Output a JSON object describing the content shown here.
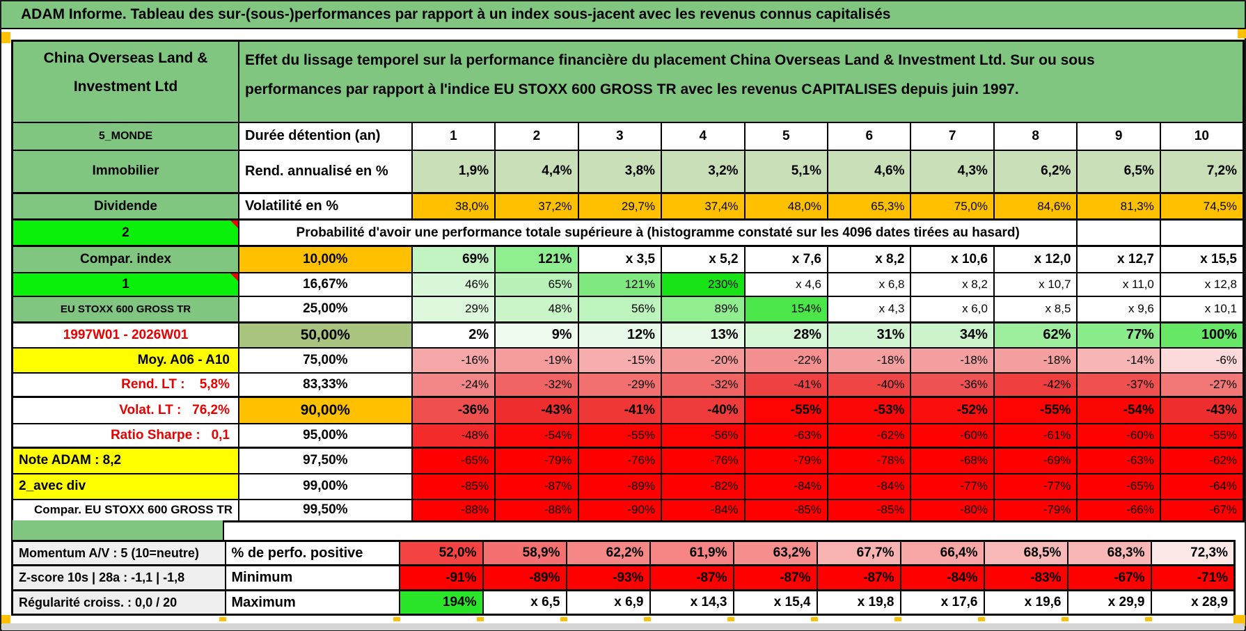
{
  "title": "ADAM Informe. Tableau des sur-(sous-)performances par rapport à un index sous-jacent avec les revenus connus capitalisés",
  "colors": {
    "header_green": "#80c680",
    "lime_green": "#0af00a",
    "orange": "#ffc000",
    "yellow": "#ffff00",
    "sage_green": "#a9c47f",
    "full_red": "#fe0000",
    "label_gray": "#efefef",
    "red_text": "#e80000",
    "comment_marker_red": "#f00000"
  },
  "table": {
    "company": "China Overseas Land &\nInvestment Ltd",
    "description": "Effet du lissage temporel sur la performance financière du placement China Overseas Land & Investment Ltd. Sur ou sous\nperformances par rapport à l'indice EU STOXX 600 GROSS TR avec les revenus CAPITALISES depuis juin 1997.",
    "rows": [
      {
        "a": {
          "text": "5_MONDE",
          "bg": "#80c680"
        },
        "b": {
          "text": "Durée détention (an)",
          "bg": "#ffffff"
        },
        "cells": [
          {
            "v": "1",
            "bg": "#ffffff"
          },
          {
            "v": "2",
            "bg": "#ffffff"
          },
          {
            "v": "3",
            "bg": "#ffffff"
          },
          {
            "v": "4",
            "bg": "#ffffff"
          },
          {
            "v": "5",
            "bg": "#ffffff"
          },
          {
            "v": "6",
            "bg": "#ffffff"
          },
          {
            "v": "7",
            "bg": "#ffffff"
          },
          {
            "v": "8",
            "bg": "#ffffff"
          },
          {
            "v": "9",
            "bg": "#ffffff"
          },
          {
            "v": "10",
            "bg": "#ffffff"
          }
        ]
      },
      {
        "a": {
          "text": "Immobilier",
          "bg": "#80c680"
        },
        "b": {
          "text": "Rend. annualisé en %",
          "bg": "#ffffff"
        },
        "cells": [
          {
            "v": "1,9%",
            "bg": "#c9dfb8"
          },
          {
            "v": "4,4%",
            "bg": "#c9dfb8"
          },
          {
            "v": "3,8%",
            "bg": "#c9dfb8"
          },
          {
            "v": "3,2%",
            "bg": "#c9dfb8"
          },
          {
            "v": "5,1%",
            "bg": "#c9dfb8"
          },
          {
            "v": "4,6%",
            "bg": "#c9dfb8"
          },
          {
            "v": "4,3%",
            "bg": "#c9dfb8"
          },
          {
            "v": "6,2%",
            "bg": "#c9dfb8"
          },
          {
            "v": "6,5%",
            "bg": "#c9dfb8"
          },
          {
            "v": "7,2%",
            "bg": "#c9dfb8"
          }
        ]
      },
      {
        "a": {
          "text": "Dividende",
          "bg": "#80c680"
        },
        "b": {
          "text": "Volatilité en %",
          "bg": "#ffffff"
        },
        "cells": [
          {
            "v": "38,0%",
            "bg": "#ffc000"
          },
          {
            "v": "37,2%",
            "bg": "#ffc000"
          },
          {
            "v": "29,7%",
            "bg": "#ffc000"
          },
          {
            "v": "37,4%",
            "bg": "#ffc000"
          },
          {
            "v": "48,0%",
            "bg": "#ffc000"
          },
          {
            "v": "65,3%",
            "bg": "#ffc000"
          },
          {
            "v": "75,0%",
            "bg": "#ffc000"
          },
          {
            "v": "84,6%",
            "bg": "#ffc000"
          },
          {
            "v": "81,3%",
            "bg": "#ffc000"
          },
          {
            "v": "74,5%",
            "bg": "#ffc000"
          }
        ]
      },
      {
        "a": {
          "text": "2",
          "bg": "#0af00a",
          "comment_marker": true
        },
        "b": {
          "text": "Probabilité d'avoir une performance totale supérieure à (histogramme constaté sur les 4096 dates tirées au hasard)",
          "bg": "#ffffff",
          "colspan": 9
        },
        "cells": [
          {
            "v": "",
            "bg": "#ffffff"
          },
          {
            "v": "",
            "bg": "#ffffff"
          }
        ]
      },
      {
        "a": {
          "text": "Compar. index",
          "bg": "#80c680"
        },
        "b": {
          "text": "10,00%",
          "bg": "#ffc000"
        },
        "cells": [
          {
            "v": "69%",
            "bg": "#c2f4c2"
          },
          {
            "v": "121%",
            "bg": "#8fee8f"
          },
          {
            "v": "x 3,5",
            "bg": "#ffffff"
          },
          {
            "v": "x 5,2",
            "bg": "#ffffff"
          },
          {
            "v": "x 7,6",
            "bg": "#ffffff"
          },
          {
            "v": "x 8,2",
            "bg": "#ffffff"
          },
          {
            "v": "x 10,6",
            "bg": "#ffffff"
          },
          {
            "v": "x 12,0",
            "bg": "#ffffff"
          },
          {
            "v": "x 12,7",
            "bg": "#ffffff"
          },
          {
            "v": "x 15,5",
            "bg": "#ffffff"
          }
        ]
      },
      {
        "a": {
          "text": "1",
          "bg": "#0af00a",
          "comment_marker": true
        },
        "b": {
          "text": "16,67%",
          "bg": "#ffffff"
        },
        "cells": [
          {
            "v": "46%",
            "bg": "#d7f7d7"
          },
          {
            "v": "65%",
            "bg": "#b9f2b9"
          },
          {
            "v": "121%",
            "bg": "#7fe97f"
          },
          {
            "v": "230%",
            "bg": "#17e317"
          },
          {
            "v": "x 4,6",
            "bg": "#ffffff"
          },
          {
            "v": "x 6,8",
            "bg": "#ffffff"
          },
          {
            "v": "x 8,2",
            "bg": "#ffffff"
          },
          {
            "v": "x 10,7",
            "bg": "#ffffff"
          },
          {
            "v": "x 11,0",
            "bg": "#ffffff"
          },
          {
            "v": "x 12,8",
            "bg": "#ffffff"
          }
        ]
      },
      {
        "a": {
          "text": "EU STOXX 600 GROSS TR",
          "bg": "#80c680"
        },
        "b": {
          "text": "25,00%",
          "bg": "#ffffff"
        },
        "cells": [
          {
            "v": "29%",
            "bg": "#def8de"
          },
          {
            "v": "48%",
            "bg": "#c9f5c9"
          },
          {
            "v": "56%",
            "bg": "#bdf3bd"
          },
          {
            "v": "89%",
            "bg": "#90ee90"
          },
          {
            "v": "154%",
            "bg": "#4ae64a"
          },
          {
            "v": "x 4,3",
            "bg": "#ffffff"
          },
          {
            "v": "x 6,0",
            "bg": "#ffffff"
          },
          {
            "v": "x 8,5",
            "bg": "#ffffff"
          },
          {
            "v": "x 9,6",
            "bg": "#ffffff"
          },
          {
            "v": "x 10,1",
            "bg": "#ffffff"
          }
        ]
      },
      {
        "a": {
          "text": "1997W01 - 2026W01",
          "bg": "#ffffff",
          "fg": "#e80000"
        },
        "b": {
          "text": "50,00%",
          "bg": "#a9c47f"
        },
        "cells": [
          {
            "v": "2%",
            "bg": "#ffffff"
          },
          {
            "v": "9%",
            "bg": "#f0fbf0"
          },
          {
            "v": "12%",
            "bg": "#e9f9e9"
          },
          {
            "v": "13%",
            "bg": "#e8f9e8"
          },
          {
            "v": "28%",
            "bg": "#d5f6d5"
          },
          {
            "v": "31%",
            "bg": "#d0f5d0"
          },
          {
            "v": "34%",
            "bg": "#cbf4cb"
          },
          {
            "v": "62%",
            "bg": "#9def9d"
          },
          {
            "v": "77%",
            "bg": "#8bec8b"
          },
          {
            "v": "100%",
            "bg": "#66e866"
          }
        ]
      },
      {
        "a": {
          "text": "Moy. A06 - A10",
          "bg": "#ffff00"
        },
        "b": {
          "text": "75,00%",
          "bg": "#ffffff"
        },
        "cells": [
          {
            "v": "-16%",
            "bg": "#f6a7a7"
          },
          {
            "v": "-19%",
            "bg": "#f59c9c"
          },
          {
            "v": "-15%",
            "bg": "#f7adad"
          },
          {
            "v": "-20%",
            "bg": "#f59898"
          },
          {
            "v": "-22%",
            "bg": "#f49090"
          },
          {
            "v": "-18%",
            "bg": "#f5a0a0"
          },
          {
            "v": "-18%",
            "bg": "#f5a0a0"
          },
          {
            "v": "-18%",
            "bg": "#f5a0a0"
          },
          {
            "v": "-14%",
            "bg": "#f8b5b5"
          },
          {
            "v": "-6%",
            "bg": "#fcdada"
          }
        ]
      },
      {
        "a": {
          "text": "Rend. LT :    5,8%",
          "bg": "#ffffff",
          "fg": "#e80000"
        },
        "b": {
          "text": "83,33%",
          "bg": "#ffffff"
        },
        "cells": [
          {
            "v": "-24%",
            "bg": "#f38686"
          },
          {
            "v": "-32%",
            "bg": "#f16464"
          },
          {
            "v": "-29%",
            "bg": "#f27070"
          },
          {
            "v": "-32%",
            "bg": "#f16464"
          },
          {
            "v": "-41%",
            "bg": "#ef4141"
          },
          {
            "v": "-40%",
            "bg": "#ef4545"
          },
          {
            "v": "-36%",
            "bg": "#f05353"
          },
          {
            "v": "-42%",
            "bg": "#ee3e3e"
          },
          {
            "v": "-37%",
            "bg": "#f05050"
          },
          {
            "v": "-27%",
            "bg": "#f27777"
          }
        ]
      },
      {
        "a": {
          "text": "Volat. LT :   76,2%",
          "bg": "#ffffff",
          "fg": "#e80000"
        },
        "b": {
          "text": "90,00%",
          "bg": "#ffc000"
        },
        "cells": [
          {
            "v": "-36%",
            "bg": "#f04f4f"
          },
          {
            "v": "-43%",
            "bg": "#ee2e2e"
          },
          {
            "v": "-41%",
            "bg": "#ef3737"
          },
          {
            "v": "-40%",
            "bg": "#ef3b3b"
          },
          {
            "v": "-55%",
            "bg": "#fd0303"
          },
          {
            "v": "-53%",
            "bg": "#fb0707"
          },
          {
            "v": "-52%",
            "bg": "#fa0e0e"
          },
          {
            "v": "-55%",
            "bg": "#fd0303"
          },
          {
            "v": "-54%",
            "bg": "#fc0505"
          },
          {
            "v": "-43%",
            "bg": "#ee2e2e"
          }
        ]
      },
      {
        "a": {
          "text": "Ratio Sharpe :   0,1",
          "bg": "#ffffff",
          "fg": "#e80000"
        },
        "b": {
          "text": "95,00%",
          "bg": "#ffffff"
        },
        "cells": [
          {
            "v": "-48%",
            "bg": "#f52a2a"
          },
          {
            "v": "-54%",
            "bg": "#fc0808"
          },
          {
            "v": "-55%",
            "bg": "#fd0404"
          },
          {
            "v": "-56%",
            "bg": "#fd0303"
          },
          {
            "v": "-63%",
            "bg": "#fe0101"
          },
          {
            "v": "-62%",
            "bg": "#fe0101"
          },
          {
            "v": "-60%",
            "bg": "#fe0101"
          },
          {
            "v": "-61%",
            "bg": "#fe0101"
          },
          {
            "v": "-60%",
            "bg": "#fe0101"
          },
          {
            "v": "-55%",
            "bg": "#fd0404"
          }
        ]
      },
      {
        "a": {
          "text": "Note ADAM : 8,2",
          "bg": "#ffff00"
        },
        "b": {
          "text": "97,50%",
          "bg": "#ffffff"
        },
        "cells": [
          {
            "v": "-65%",
            "bg": "#fe0000"
          },
          {
            "v": "-79%",
            "bg": "#fe0000"
          },
          {
            "v": "-76%",
            "bg": "#fe0000"
          },
          {
            "v": "-76%",
            "bg": "#fe0000"
          },
          {
            "v": "-79%",
            "bg": "#fe0000"
          },
          {
            "v": "-78%",
            "bg": "#fe0000"
          },
          {
            "v": "-68%",
            "bg": "#fe0000"
          },
          {
            "v": "-69%",
            "bg": "#fe0000"
          },
          {
            "v": "-63%",
            "bg": "#fe0000"
          },
          {
            "v": "-62%",
            "bg": "#fe0000"
          }
        ]
      },
      {
        "a": {
          "text": "2_avec div",
          "bg": "#ffff00"
        },
        "b": {
          "text": "99,00%",
          "bg": "#ffffff"
        },
        "cells": [
          {
            "v": "-85%",
            "bg": "#fe0000"
          },
          {
            "v": "-87%",
            "bg": "#fe0000"
          },
          {
            "v": "-89%",
            "bg": "#fe0000"
          },
          {
            "v": "-82%",
            "bg": "#fe0000"
          },
          {
            "v": "-84%",
            "bg": "#fe0000"
          },
          {
            "v": "-84%",
            "bg": "#fe0000"
          },
          {
            "v": "-77%",
            "bg": "#fe0000"
          },
          {
            "v": "-77%",
            "bg": "#fe0000"
          },
          {
            "v": "-65%",
            "bg": "#fe0000"
          },
          {
            "v": "-64%",
            "bg": "#fe0000"
          }
        ]
      },
      {
        "a": {
          "text": "Compar. EU STOXX 600 GROSS TR",
          "bg": "#ffffff"
        },
        "b": {
          "text": "99,50%",
          "bg": "#ffffff"
        },
        "cells": [
          {
            "v": "-88%",
            "bg": "#fe0000"
          },
          {
            "v": "-88%",
            "bg": "#fe0000"
          },
          {
            "v": "-90%",
            "bg": "#fe0000"
          },
          {
            "v": "-84%",
            "bg": "#fe0000"
          },
          {
            "v": "-85%",
            "bg": "#fe0000"
          },
          {
            "v": "-85%",
            "bg": "#fe0000"
          },
          {
            "v": "-80%",
            "bg": "#fe0000"
          },
          {
            "v": "-79%",
            "bg": "#fe0000"
          },
          {
            "v": "-66%",
            "bg": "#fe0000"
          },
          {
            "v": "-67%",
            "bg": "#fe0000"
          }
        ]
      }
    ]
  },
  "bottom": {
    "rows": [
      {
        "a": {
          "text": "Momentum A/V : 5 (10=neutre)",
          "bg": "#efefef"
        },
        "b": {
          "text": "% de perfo. positive",
          "bg": "#ffffff"
        },
        "cells": [
          {
            "v": "52,0%",
            "bg": "#f34343"
          },
          {
            "v": "58,9%",
            "bg": "#f57070"
          },
          {
            "v": "62,2%",
            "bg": "#f68787"
          },
          {
            "v": "61,9%",
            "bg": "#f68484"
          },
          {
            "v": "63,2%",
            "bg": "#f78f8f"
          },
          {
            "v": "67,7%",
            "bg": "#f9b2b2"
          },
          {
            "v": "66,4%",
            "bg": "#f8a6a6"
          },
          {
            "v": "68,5%",
            "bg": "#f9b8b8"
          },
          {
            "v": "68,3%",
            "bg": "#f9b6b6"
          },
          {
            "v": "72,3%",
            "bg": "#fde8e8"
          }
        ]
      },
      {
        "a": {
          "text": "Z-score 10s | 28a : -1,1 | -1,8",
          "bg": "#efefef"
        },
        "b": {
          "text": "Minimum",
          "bg": "#ffffff"
        },
        "cells": [
          {
            "v": "-91%",
            "bg": "#fe0000"
          },
          {
            "v": "-89%",
            "bg": "#fe0000"
          },
          {
            "v": "-93%",
            "bg": "#fe0000"
          },
          {
            "v": "-87%",
            "bg": "#fe0000"
          },
          {
            "v": "-87%",
            "bg": "#fe0000"
          },
          {
            "v": "-87%",
            "bg": "#fe0000"
          },
          {
            "v": "-84%",
            "bg": "#fe0000"
          },
          {
            "v": "-83%",
            "bg": "#fe0000"
          },
          {
            "v": "-67%",
            "bg": "#fe0000"
          },
          {
            "v": "-71%",
            "bg": "#fe0000"
          }
        ]
      },
      {
        "a": {
          "text": "Régularité croiss. : 0,0 / 20",
          "bg": "#efefef"
        },
        "b": {
          "text": "Maximum",
          "bg": "#ffffff"
        },
        "cells": [
          {
            "v": "194%",
            "bg": "#2be52b"
          },
          {
            "v": "x 6,5",
            "bg": "#ffffff"
          },
          {
            "v": "x 6,9",
            "bg": "#ffffff"
          },
          {
            "v": "x 14,3",
            "bg": "#ffffff"
          },
          {
            "v": "x 15,4",
            "bg": "#ffffff"
          },
          {
            "v": "x 19,8",
            "bg": "#ffffff"
          },
          {
            "v": "x 17,6",
            "bg": "#ffffff"
          },
          {
            "v": "x 19,6",
            "bg": "#ffffff"
          },
          {
            "v": "x 29,9",
            "bg": "#ffffff"
          },
          {
            "v": "x 28,9",
            "bg": "#ffffff"
          }
        ]
      }
    ]
  }
}
